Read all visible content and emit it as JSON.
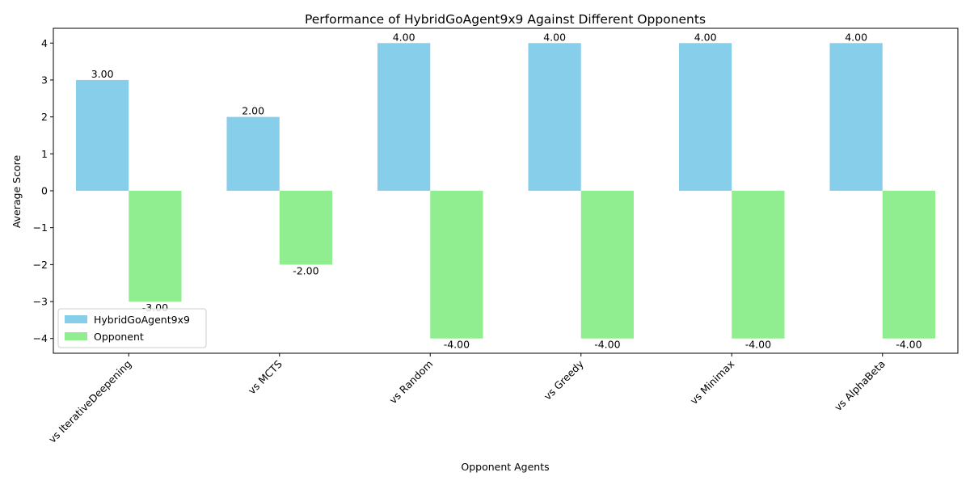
{
  "chart_data": {
    "type": "bar",
    "title": "Performance of HybridGoAgent9x9 Against Different Opponents",
    "xlabel": "Opponent Agents",
    "ylabel": "Average Score",
    "categories": [
      "vs IterativeDeepening",
      "vs MCTS",
      "vs Random",
      "vs Greedy",
      "vs Minimax",
      "vs AlphaBeta"
    ],
    "series": [
      {
        "name": "HybridGoAgent9x9",
        "values": [
          3.0,
          2.0,
          4.0,
          4.0,
          4.0,
          4.0
        ],
        "color": "#87CEEB",
        "labels": [
          "3.00",
          "2.00",
          "4.00",
          "4.00",
          "4.00",
          "4.00"
        ]
      },
      {
        "name": "Opponent",
        "values": [
          -3.0,
          -2.0,
          -4.0,
          -4.0,
          -4.0,
          -4.0
        ],
        "color": "#90EE90",
        "labels": [
          "-3.00",
          "-2.00",
          "-4.00",
          "-4.00",
          "-4.00",
          "-4.00"
        ]
      }
    ],
    "ylim": [
      -4.4,
      4.4
    ],
    "yticks": [
      -4,
      -3,
      -2,
      -1,
      0,
      1,
      2,
      3,
      4
    ],
    "ytick_labels": [
      "−4",
      "−3",
      "−2",
      "−1",
      "0",
      "1",
      "2",
      "3",
      "4"
    ],
    "grid": false,
    "legend_position": "lower-left"
  }
}
